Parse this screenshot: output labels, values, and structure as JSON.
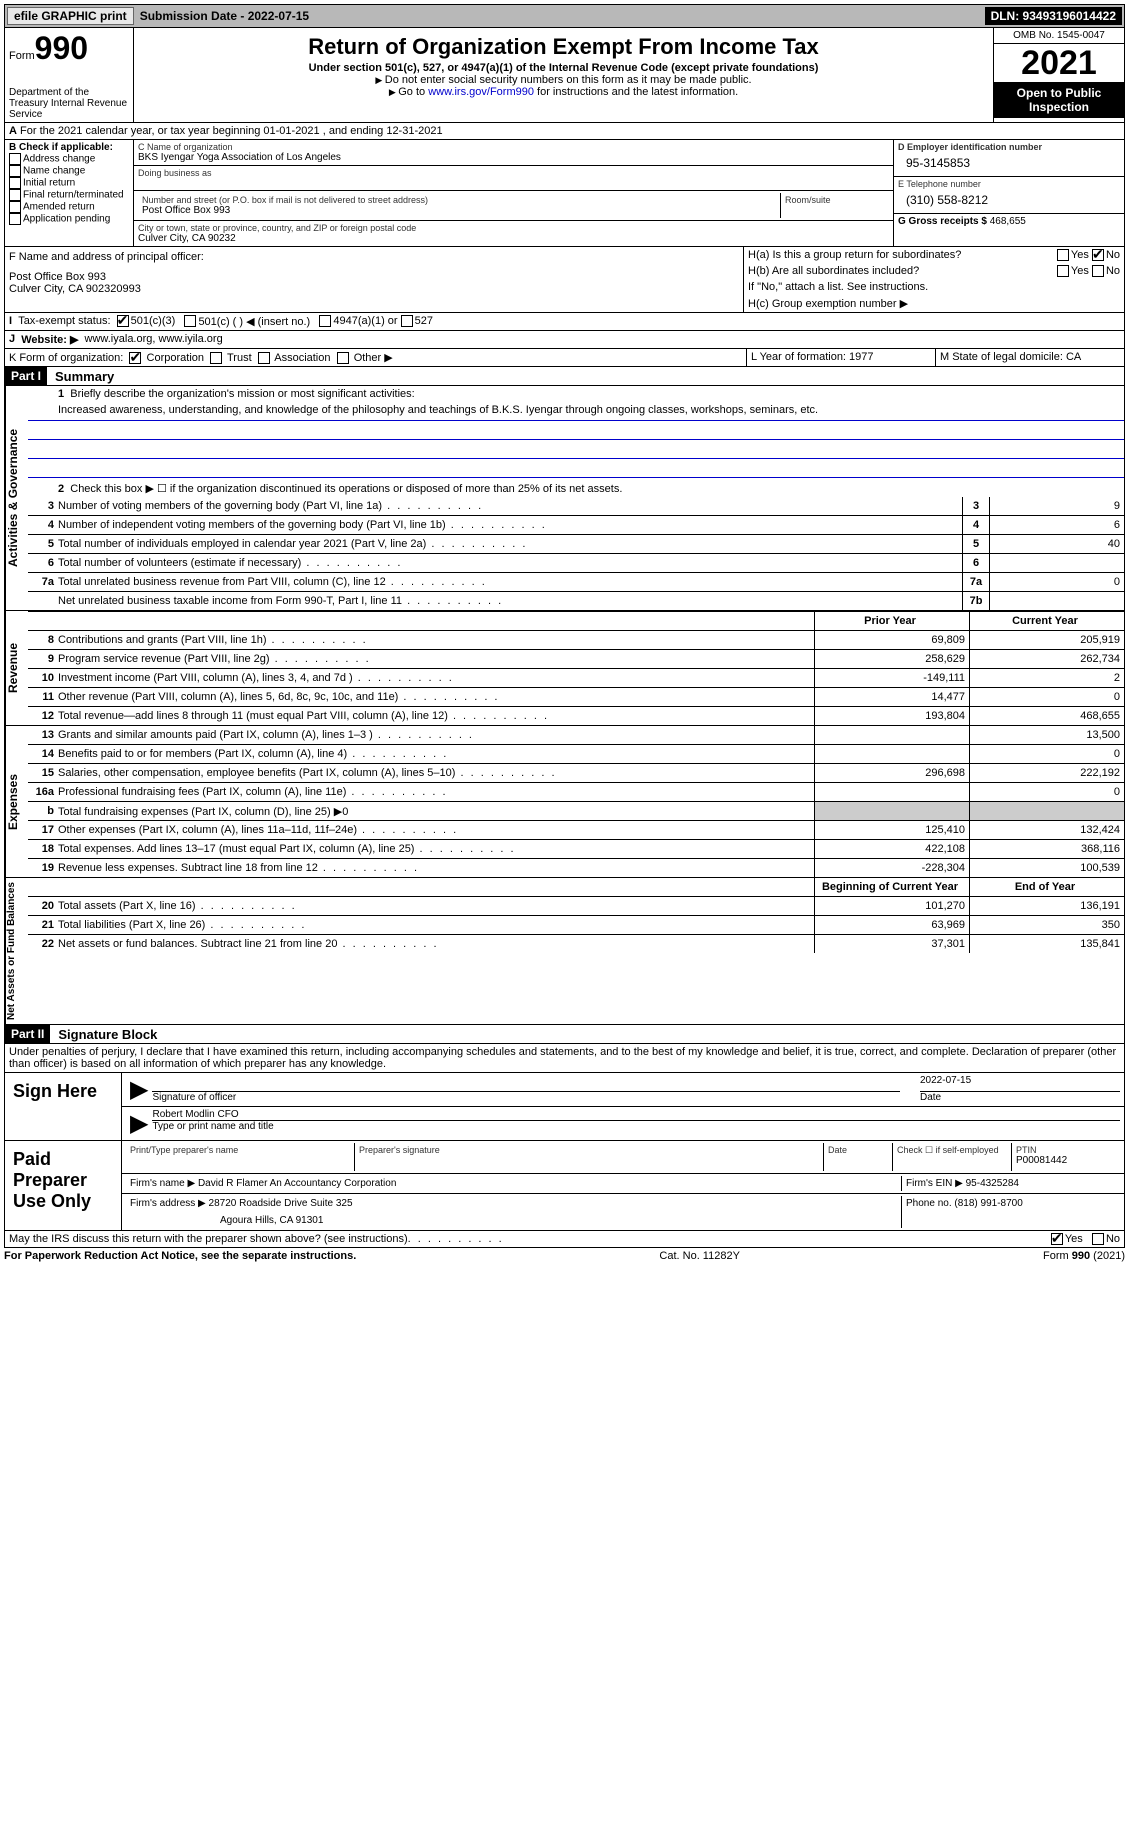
{
  "topbar": {
    "efile": "efile GRAPHIC print",
    "sub_label": "Submission Date - 2022-07-15",
    "dln": "DLN: 93493196014422"
  },
  "header": {
    "form_prefix": "Form",
    "form_no": "990",
    "dept": "Department of the Treasury Internal Revenue Service",
    "title": "Return of Organization Exempt From Income Tax",
    "sub1": "Under section 501(c), 527, or 4947(a)(1) of the Internal Revenue Code (except private foundations)",
    "note1": "Do not enter social security numbers on this form as it may be made public.",
    "note2_pre": "Go to ",
    "note2_link": "www.irs.gov/Form990",
    "note2_post": " for instructions and the latest information.",
    "omb": "OMB No. 1545-0047",
    "year": "2021",
    "open": "Open to Public Inspection"
  },
  "A": {
    "text": "For the 2021 calendar year, or tax year beginning 01-01-2021    , and ending 12-31-2021"
  },
  "B": {
    "hdr": "B Check if applicable:",
    "opts": [
      "Address change",
      "Name change",
      "Initial return",
      "Final return/terminated",
      "Amended return",
      "Application pending"
    ]
  },
  "C": {
    "name_lbl": "C Name of organization",
    "name": "BKS Iyengar Yoga Association of Los Angeles",
    "dba_lbl": "Doing business as",
    "addr_lbl": "Number and street (or P.O. box if mail is not delivered to street address)",
    "addr": "Post Office Box 993",
    "room_lbl": "Room/suite",
    "city_lbl": "City or town, state or province, country, and ZIP or foreign postal code",
    "city": "Culver City, CA  90232"
  },
  "D": {
    "ein_lbl": "D Employer identification number",
    "ein": "95-3145853",
    "tel_lbl": "E Telephone number",
    "tel": "(310) 558-8212",
    "gross_lbl": "G Gross receipts $",
    "gross": "468,655"
  },
  "F": {
    "lbl": "F  Name and address of principal officer:",
    "addr1": "Post Office Box 993",
    "addr2": "Culver City, CA  902320993"
  },
  "H": {
    "a": "H(a)  Is this a group return for subordinates?",
    "b": "H(b)  Are all subordinates included?",
    "note": "If \"No,\" attach a list. See instructions.",
    "c": "H(c)  Group exemption number ▶"
  },
  "I": {
    "lbl": "Tax-exempt status:",
    "o1": "501(c)(3)",
    "o2": "501(c) (  ) ◀ (insert no.)",
    "o3": "4947(a)(1) or",
    "o4": "527"
  },
  "J": {
    "lbl": "Website: ▶",
    "val": "www.iyala.org, www.iyila.org"
  },
  "K": {
    "lbl": "K Form of organization:",
    "opts": [
      "Corporation",
      "Trust",
      "Association",
      "Other ▶"
    ]
  },
  "L": {
    "lbl": "L Year of formation: 1977"
  },
  "M": {
    "lbl": "M State of legal domicile: CA"
  },
  "part1": {
    "hdr": "Part I",
    "title": "Summary",
    "l1": "Briefly describe the organization's mission or most significant activities:",
    "mission": "Increased awareness, understanding, and knowledge of the philosophy and teachings of B.K.S. Iyengar through ongoing classes, workshops, seminars, etc.",
    "l2": "Check this box ▶ ☐ if the organization discontinued its operations or disposed of more than 25% of its net assets.",
    "lines_num": [
      {
        "n": "3",
        "d": "Number of voting members of the governing body (Part VI, line 1a)",
        "bn": "3",
        "v": "9"
      },
      {
        "n": "4",
        "d": "Number of independent voting members of the governing body (Part VI, line 1b)",
        "bn": "4",
        "v": "6"
      },
      {
        "n": "5",
        "d": "Total number of individuals employed in calendar year 2021 (Part V, line 2a)",
        "bn": "5",
        "v": "40"
      },
      {
        "n": "6",
        "d": "Total number of volunteers (estimate if necessary)",
        "bn": "6",
        "v": ""
      },
      {
        "n": "7a",
        "d": "Total unrelated business revenue from Part VIII, column (C), line 12",
        "bn": "7a",
        "v": "0"
      },
      {
        "n": "",
        "d": "Net unrelated business taxable income from Form 990-T, Part I, line 11",
        "bn": "7b",
        "v": ""
      }
    ],
    "col_prior": "Prior Year",
    "col_curr": "Current Year",
    "revenue": [
      {
        "n": "8",
        "d": "Contributions and grants (Part VIII, line 1h)",
        "p": "69,809",
        "c": "205,919"
      },
      {
        "n": "9",
        "d": "Program service revenue (Part VIII, line 2g)",
        "p": "258,629",
        "c": "262,734"
      },
      {
        "n": "10",
        "d": "Investment income (Part VIII, column (A), lines 3, 4, and 7d )",
        "p": "-149,111",
        "c": "2"
      },
      {
        "n": "11",
        "d": "Other revenue (Part VIII, column (A), lines 5, 6d, 8c, 9c, 10c, and 11e)",
        "p": "14,477",
        "c": "0"
      },
      {
        "n": "12",
        "d": "Total revenue—add lines 8 through 11 (must equal Part VIII, column (A), line 12)",
        "p": "193,804",
        "c": "468,655"
      }
    ],
    "expenses": [
      {
        "n": "13",
        "d": "Grants and similar amounts paid (Part IX, column (A), lines 1–3 )",
        "p": "",
        "c": "13,500"
      },
      {
        "n": "14",
        "d": "Benefits paid to or for members (Part IX, column (A), line 4)",
        "p": "",
        "c": "0"
      },
      {
        "n": "15",
        "d": "Salaries, other compensation, employee benefits (Part IX, column (A), lines 5–10)",
        "p": "296,698",
        "c": "222,192"
      },
      {
        "n": "16a",
        "d": "Professional fundraising fees (Part IX, column (A), line 11e)",
        "p": "",
        "c": "0"
      },
      {
        "n": "b",
        "d": "Total fundraising expenses (Part IX, column (D), line 25) ▶0",
        "p": "shaded",
        "c": "shaded"
      },
      {
        "n": "17",
        "d": "Other expenses (Part IX, column (A), lines 11a–11d, 11f–24e)",
        "p": "125,410",
        "c": "132,424"
      },
      {
        "n": "18",
        "d": "Total expenses. Add lines 13–17 (must equal Part IX, column (A), line 25)",
        "p": "422,108",
        "c": "368,116"
      },
      {
        "n": "19",
        "d": "Revenue less expenses. Subtract line 18 from line 12",
        "p": "-228,304",
        "c": "100,539"
      }
    ],
    "col_beg": "Beginning of Current Year",
    "col_end": "End of Year",
    "net": [
      {
        "n": "20",
        "d": "Total assets (Part X, line 16)",
        "p": "101,270",
        "c": "136,191"
      },
      {
        "n": "21",
        "d": "Total liabilities (Part X, line 26)",
        "p": "63,969",
        "c": "350"
      },
      {
        "n": "22",
        "d": "Net assets or fund balances. Subtract line 21 from line 20",
        "p": "37,301",
        "c": "135,841"
      }
    ],
    "side1": "Activities & Governance",
    "side2": "Revenue",
    "side3": "Expenses",
    "side4": "Net Assets or Fund Balances"
  },
  "part2": {
    "hdr": "Part II",
    "title": "Signature Block",
    "decl": "Under penalties of perjury, I declare that I have examined this return, including accompanying schedules and statements, and to the best of my knowledge and belief, it is true, correct, and complete. Declaration of preparer (other than officer) is based on all information of which preparer has any knowledge.",
    "sign_here": "Sign Here",
    "sig_officer": "Signature of officer",
    "sig_date": "2022-07-15",
    "date_lbl": "Date",
    "officer": "Robert Modlin CFO",
    "type_name": "Type or print name and title",
    "paid_prep": "Paid Preparer Use Only",
    "pp_name_lbl": "Print/Type preparer's name",
    "pp_sig_lbl": "Preparer's signature",
    "pp_date_lbl": "Date",
    "pp_check": "Check ☐ if self-employed",
    "ptin_lbl": "PTIN",
    "ptin": "P00081442",
    "firm_name_lbl": "Firm's name    ▶",
    "firm_name": "David R Flamer An Accountancy Corporation",
    "firm_ein_lbl": "Firm's EIN ▶",
    "firm_ein": "95-4325284",
    "firm_addr_lbl": "Firm's address ▶",
    "firm_addr1": "28720 Roadside Drive Suite 325",
    "firm_addr2": "Agoura Hills, CA  91301",
    "phone_lbl": "Phone no.",
    "phone": "(818) 991-8700",
    "discuss": "May the IRS discuss this return with the preparer shown above? (see instructions)",
    "yes": "Yes",
    "no": "No"
  },
  "footer": {
    "left": "For Paperwork Reduction Act Notice, see the separate instructions.",
    "mid": "Cat. No. 11282Y",
    "right": "Form 990 (2021)"
  }
}
